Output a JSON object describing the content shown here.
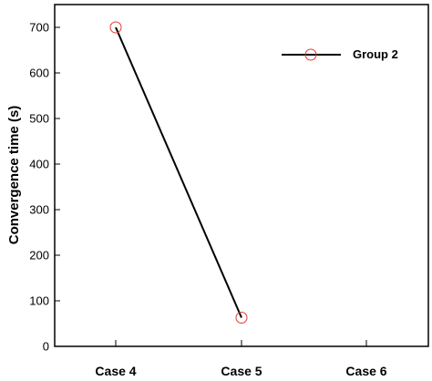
{
  "chart_data": {
    "type": "line",
    "title": "",
    "xlabel": "",
    "ylabel": "Convergence time (s)",
    "categories": [
      "Case 4",
      "Case 5",
      "Case 6"
    ],
    "ylim": [
      0,
      750
    ],
    "yticks": [
      0,
      100,
      200,
      300,
      400,
      500,
      600,
      700
    ],
    "grid": false,
    "legend_position": "top-right",
    "series": [
      {
        "name": "Group 2",
        "values": [
          700,
          63,
          null
        ],
        "line_color": "#000000",
        "marker": "circle",
        "marker_color": "#e03c31"
      }
    ]
  }
}
